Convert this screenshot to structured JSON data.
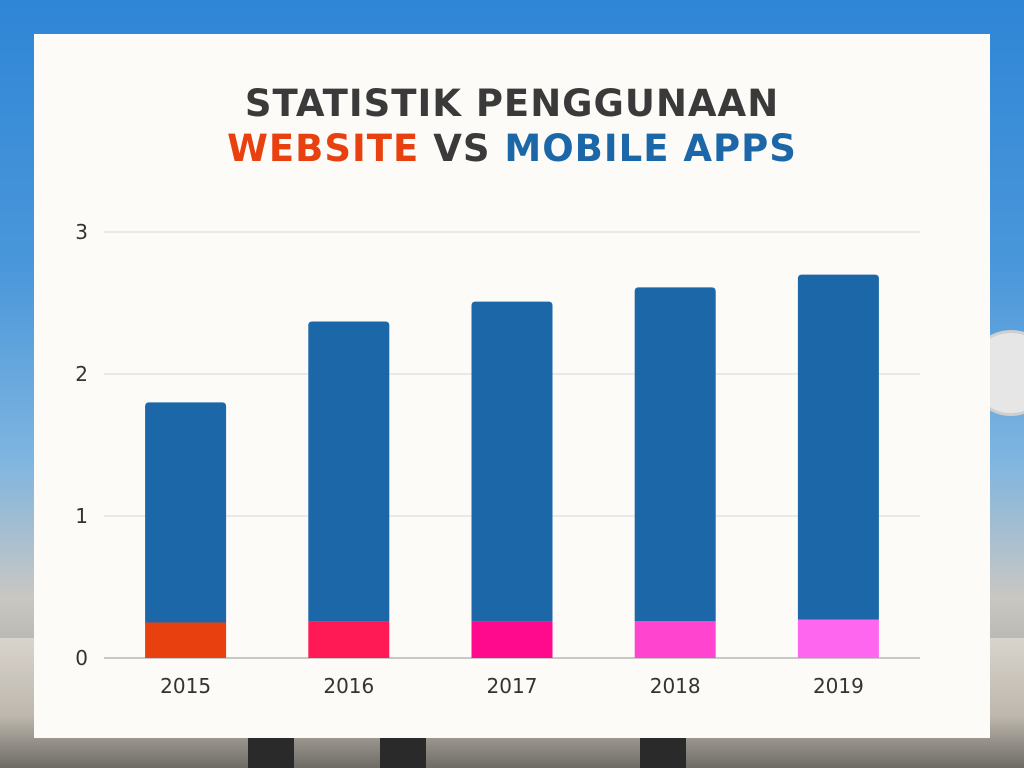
{
  "title": {
    "line1": "STATISTIK PENGGUNAAN",
    "website": "WEBSITE",
    "vs": "VS",
    "mobile": "MOBILE APPS"
  },
  "chart_data": {
    "type": "bar",
    "stacked": true,
    "categories": [
      "2015",
      "2016",
      "2017",
      "2018",
      "2019"
    ],
    "series": [
      {
        "values": [
          0.25,
          0.26,
          0.26,
          0.26,
          0.27
        ],
        "colors": [
          "#e8400f",
          "#ff1a55",
          "#ff0a8c",
          "#ff45cf",
          "#ff66f0"
        ]
      },
      {
        "values": [
          1.55,
          2.11,
          2.25,
          2.35,
          2.43
        ],
        "color": "#1b67a8"
      }
    ],
    "yticks": [
      "0",
      "1",
      "2",
      "3"
    ],
    "ylim": [
      0,
      3
    ],
    "grid": true
  }
}
